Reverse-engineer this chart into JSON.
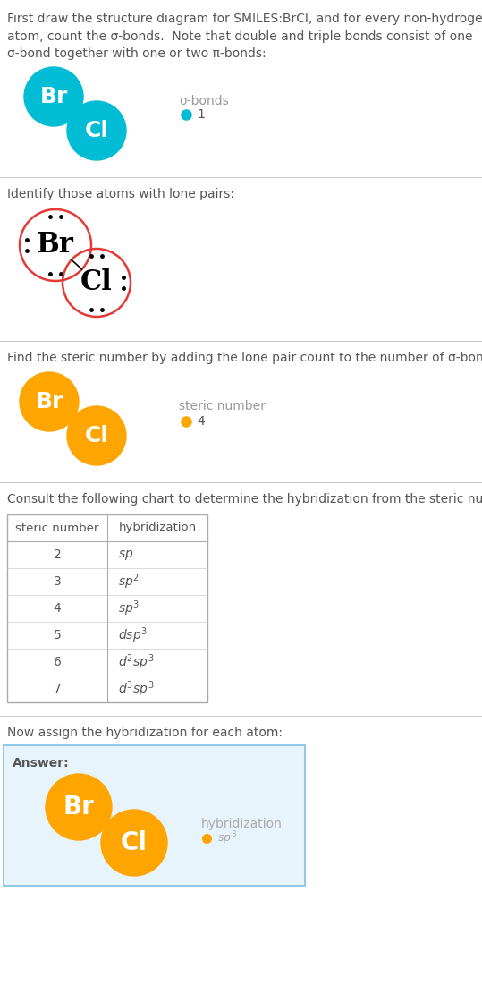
{
  "title_text": "First draw the structure diagram for SMILES:BrCl, and for every non-hydrogen\natom, count the σ-bonds.  Note that double and triple bonds consist of one\nσ-bond together with one or two π-bonds:",
  "section1_label": "σ-bonds",
  "section1_dot_color": "#00bcd4",
  "section1_dot_value": "1",
  "section1_atom1": "Br",
  "section1_atom2": "Cl",
  "section1_atom_color": "#00bcd4",
  "section2_title": "Identify those atoms with lone pairs:",
  "section2_atom1": "Br",
  "section2_atom2": "Cl",
  "section2_circle_color": "#e53935",
  "section3_title": "Find the steric number by adding the lone pair count to the number of σ-bonds:",
  "section3_label": "steric number",
  "section3_dot_color": "#FFA500",
  "section3_dot_value": "4",
  "section3_atom_color": "#FFA500",
  "section4_title": "Consult the following chart to determine the hybridization from the steric number:",
  "table_steric": [
    2,
    3,
    4,
    5,
    6,
    7
  ],
  "table_hybrid": [
    "sp",
    "sp^2",
    "sp^3",
    "dsp^3",
    "d^2sp^3",
    "d^3sp^3"
  ],
  "section5_title": "Now assign the hybridization for each atom:",
  "section5_label": "hybridization",
  "section5_dot_color": "#FFA500",
  "section5_dot_value": "sp^3",
  "section5_atom_color": "#FFA500",
  "answer_bg_color": "#e8f4fb",
  "answer_border_color": "#90cae8",
  "bg_color": "#ffffff",
  "text_color": "#555555",
  "divider_color": "#cccccc"
}
